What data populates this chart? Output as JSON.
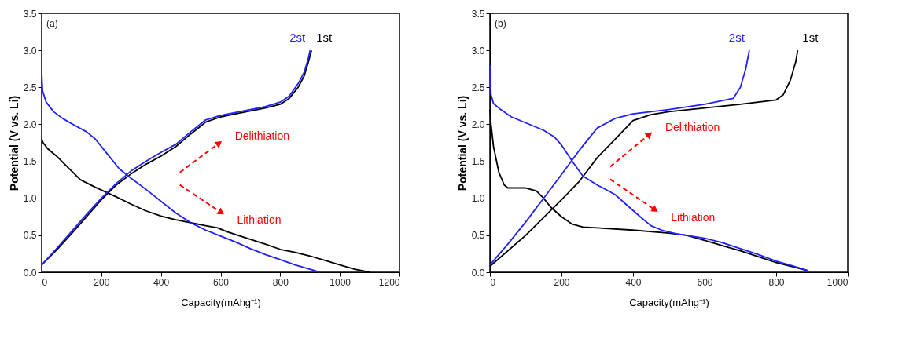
{
  "chart_data": [
    {
      "type": "line",
      "xlabel": "Capacity(mAhg⁻¹)",
      "ylabel": "Potential (V vs. Li)",
      "xlim": [
        0,
        1200
      ],
      "xticks": [
        0,
        200,
        400,
        600,
        800,
        1000,
        1200
      ],
      "ylim": [
        0,
        3.5
      ],
      "yticks": [
        {
          "value": 0,
          "label": "0.0"
        },
        {
          "value": 0.5,
          "label": "0.5"
        },
        {
          "value": 1,
          "label": "1.0"
        },
        {
          "value": 1.5,
          "label": "1.5"
        },
        {
          "value": 2,
          "label": "2.0"
        },
        {
          "value": 2.5,
          "label": "2.5"
        },
        {
          "value": 3,
          "label": "3.0"
        },
        {
          "value": 3.5,
          "label": "3.5"
        }
      ],
      "grid": false,
      "legend": false,
      "marker": "none",
      "line_style": "solid",
      "annotations": [
        "(a)",
        "Delithiation",
        "Lithiation"
      ],
      "series": [
        {
          "color": "#000000",
          "x": [
            0,
            5,
            20,
            50,
            80,
            130,
            180,
            250,
            300,
            350,
            400,
            450,
            500,
            550,
            590,
            620,
            680,
            750,
            800,
            850,
            900,
            950,
            1000,
            1050,
            1100
          ],
          "values": [
            1.8,
            1.75,
            1.67,
            1.57,
            1.45,
            1.25,
            1.15,
            1.02,
            0.92,
            0.83,
            0.76,
            0.71,
            0.67,
            0.63,
            0.6,
            0.55,
            0.47,
            0.38,
            0.31,
            0.27,
            0.22,
            0.16,
            0.1,
            0.04,
            0.0
          ]
        },
        {
          "name": "1st",
          "color": "#000000",
          "x": [
            0,
            50,
            100,
            150,
            200,
            250,
            300,
            350,
            400,
            450,
            500,
            550,
            600,
            650,
            700,
            750,
            800,
            830,
            860,
            880,
            895,
            905
          ],
          "values": [
            0.1,
            0.3,
            0.52,
            0.75,
            0.98,
            1.18,
            1.33,
            1.46,
            1.57,
            1.7,
            1.87,
            2.03,
            2.1,
            2.14,
            2.18,
            2.22,
            2.27,
            2.35,
            2.5,
            2.65,
            2.85,
            3.0
          ]
        },
        {
          "color": "#2020ff",
          "x": [
            0,
            3,
            15,
            40,
            70,
            100,
            150,
            180,
            220,
            260,
            300,
            350,
            400,
            450,
            500,
            550,
            600,
            650,
            700,
            750,
            800,
            850,
            900,
            935
          ],
          "values": [
            2.7,
            2.45,
            2.3,
            2.17,
            2.08,
            2.01,
            1.9,
            1.8,
            1.6,
            1.4,
            1.27,
            1.12,
            0.96,
            0.8,
            0.67,
            0.57,
            0.49,
            0.41,
            0.32,
            0.24,
            0.17,
            0.1,
            0.04,
            0.0
          ]
        },
        {
          "name": "2st",
          "color": "#2020ff",
          "x": [
            0,
            50,
            100,
            150,
            200,
            250,
            300,
            350,
            400,
            450,
            500,
            550,
            600,
            650,
            700,
            750,
            800,
            830,
            860,
            880,
            895,
            900
          ],
          "values": [
            0.1,
            0.32,
            0.55,
            0.78,
            1.0,
            1.2,
            1.37,
            1.5,
            1.62,
            1.73,
            1.9,
            2.06,
            2.12,
            2.16,
            2.2,
            2.24,
            2.3,
            2.38,
            2.55,
            2.7,
            2.9,
            3.0
          ]
        }
      ]
    },
    {
      "type": "line",
      "xlabel": "Capacity(mAhg⁻¹)",
      "ylabel": "Potential (V vs. Li)",
      "xlim": [
        0,
        1000
      ],
      "xticks": [
        0,
        200,
        400,
        600,
        800,
        1000
      ],
      "ylim": [
        0,
        3.5
      ],
      "yticks": [
        {
          "value": 0,
          "label": "0.0"
        },
        {
          "value": 0.5,
          "label": "0.5"
        },
        {
          "value": 1,
          "label": "1.0"
        },
        {
          "value": 1.5,
          "label": "1.5"
        },
        {
          "value": 2,
          "label": "2.0"
        },
        {
          "value": 2.5,
          "label": "2.5"
        },
        {
          "value": 3,
          "label": "3.0"
        },
        {
          "value": 3.5,
          "label": "3.5"
        }
      ],
      "grid": false,
      "legend": false,
      "marker": "none",
      "line_style": "solid",
      "annotations": [
        "(b)",
        "Delithiation",
        "Lithiation"
      ],
      "series": [
        {
          "color": "#000000",
          "x": [
            0,
            3,
            10,
            25,
            40,
            50,
            100,
            130,
            150,
            170,
            200,
            230,
            260,
            300,
            400,
            500,
            550,
            600,
            650,
            700,
            750,
            800,
            850,
            890
          ],
          "values": [
            2.2,
            2.0,
            1.7,
            1.35,
            1.18,
            1.14,
            1.14,
            1.1,
            1.0,
            0.88,
            0.75,
            0.65,
            0.61,
            0.6,
            0.57,
            0.53,
            0.5,
            0.43,
            0.36,
            0.29,
            0.21,
            0.13,
            0.07,
            0.02
          ]
        },
        {
          "name": "1st",
          "color": "#000000",
          "x": [
            0,
            100,
            200,
            250,
            300,
            350,
            400,
            450,
            500,
            600,
            700,
            800,
            820,
            840,
            855,
            860
          ],
          "values": [
            0.08,
            0.5,
            0.98,
            1.23,
            1.55,
            1.8,
            2.05,
            2.13,
            2.17,
            2.22,
            2.27,
            2.33,
            2.4,
            2.6,
            2.85,
            3.0
          ]
        },
        {
          "color": "#2020ff",
          "x": [
            0,
            3,
            10,
            30,
            60,
            100,
            150,
            180,
            200,
            230,
            260,
            300,
            350,
            380,
            420,
            450,
            480,
            520,
            600,
            650,
            700,
            750,
            800,
            850,
            890
          ],
          "values": [
            2.8,
            2.4,
            2.28,
            2.2,
            2.1,
            2.02,
            1.92,
            1.83,
            1.72,
            1.5,
            1.3,
            1.18,
            1.05,
            0.92,
            0.75,
            0.63,
            0.57,
            0.52,
            0.46,
            0.4,
            0.32,
            0.24,
            0.15,
            0.08,
            0.02
          ]
        },
        {
          "name": "2st",
          "color": "#2020ff",
          "x": [
            0,
            50,
            100,
            150,
            200,
            250,
            300,
            350,
            400,
            500,
            600,
            680,
            700,
            715,
            725
          ],
          "values": [
            0.1,
            0.38,
            0.68,
            1.0,
            1.32,
            1.65,
            1.95,
            2.08,
            2.14,
            2.2,
            2.27,
            2.35,
            2.5,
            2.75,
            3.0
          ]
        }
      ]
    }
  ]
}
